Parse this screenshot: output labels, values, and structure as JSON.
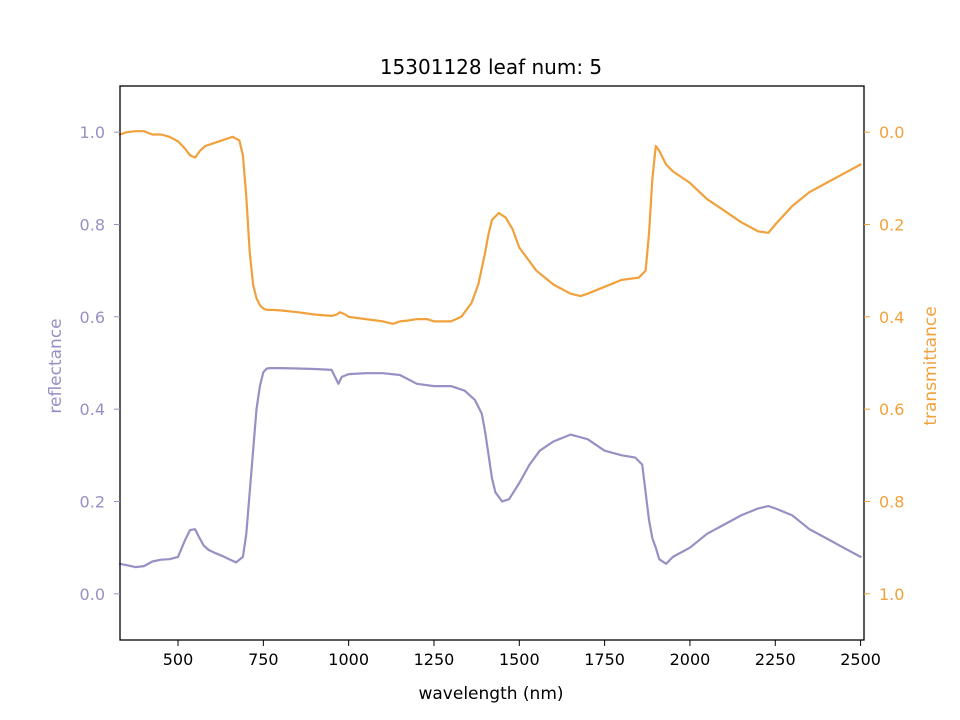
{
  "chart_data": {
    "type": "line",
    "title": "15301128 leaf num: 5",
    "xlabel": "wavelength (nm)",
    "xlim": [
      330,
      2510
    ],
    "x_ticks": [
      500,
      750,
      1000,
      1250,
      1500,
      1750,
      2000,
      2250,
      2500
    ],
    "left_axis": {
      "label": "reflectance",
      "ylim": [
        -0.1,
        1.1
      ],
      "ticks": [
        0.0,
        0.2,
        0.4,
        0.6,
        0.8,
        1.0
      ],
      "inverted": false
    },
    "right_axis": {
      "label": "transmittance",
      "ylim": [
        1.1,
        -0.1
      ],
      "ticks": [
        0.0,
        0.2,
        0.4,
        0.6,
        0.8,
        1.0
      ],
      "inverted": true
    },
    "colors": {
      "reflectance": "#9690c4",
      "transmittance": "#f0a13c"
    },
    "grid": false,
    "series": [
      {
        "axis": "left",
        "x": [
          330,
          350,
          375,
          400,
          425,
          450,
          475,
          500,
          520,
          535,
          550,
          560,
          575,
          590,
          610,
          630,
          650,
          670,
          690,
          700,
          710,
          720,
          730,
          740,
          750,
          760,
          770,
          800,
          850,
          900,
          950,
          970,
          980,
          1000,
          1050,
          1100,
          1150,
          1200,
          1250,
          1300,
          1340,
          1370,
          1390,
          1400,
          1410,
          1420,
          1430,
          1450,
          1470,
          1500,
          1530,
          1560,
          1600,
          1650,
          1700,
          1750,
          1800,
          1840,
          1860,
          1870,
          1880,
          1890,
          1900,
          1910,
          1930,
          1950,
          2000,
          2050,
          2100,
          2150,
          2200,
          2230,
          2250,
          2300,
          2350,
          2400,
          2450,
          2500
        ],
        "y": [
          0.065,
          0.062,
          0.058,
          0.06,
          0.07,
          0.074,
          0.075,
          0.08,
          0.115,
          0.138,
          0.14,
          0.125,
          0.105,
          0.095,
          0.088,
          0.082,
          0.075,
          0.068,
          0.08,
          0.13,
          0.22,
          0.31,
          0.4,
          0.45,
          0.48,
          0.488,
          0.489,
          0.489,
          0.488,
          0.487,
          0.485,
          0.455,
          0.47,
          0.476,
          0.478,
          0.478,
          0.474,
          0.455,
          0.45,
          0.45,
          0.44,
          0.42,
          0.39,
          0.35,
          0.3,
          0.25,
          0.22,
          0.2,
          0.205,
          0.24,
          0.28,
          0.31,
          0.33,
          0.345,
          0.335,
          0.31,
          0.3,
          0.295,
          0.28,
          0.22,
          0.16,
          0.12,
          0.1,
          0.075,
          0.065,
          0.08,
          0.1,
          0.13,
          0.15,
          0.17,
          0.185,
          0.19,
          0.185,
          0.17,
          0.14,
          0.12,
          0.1,
          0.08
        ]
      },
      {
        "axis": "right",
        "x": [
          330,
          350,
          375,
          400,
          425,
          450,
          475,
          500,
          520,
          535,
          550,
          565,
          580,
          600,
          620,
          640,
          660,
          680,
          690,
          700,
          710,
          720,
          730,
          740,
          750,
          760,
          775,
          800,
          850,
          900,
          950,
          965,
          975,
          990,
          1000,
          1050,
          1100,
          1130,
          1150,
          1175,
          1200,
          1230,
          1250,
          1300,
          1330,
          1360,
          1380,
          1400,
          1410,
          1420,
          1440,
          1460,
          1480,
          1500,
          1550,
          1600,
          1650,
          1680,
          1700,
          1750,
          1800,
          1850,
          1870,
          1880,
          1890,
          1900,
          1910,
          1930,
          1950,
          2000,
          2050,
          2100,
          2150,
          2200,
          2230,
          2250,
          2300,
          2350,
          2400,
          2450,
          2500
        ],
        "y": [
          0.005,
          0.0,
          -0.002,
          -0.002,
          0.005,
          0.005,
          0.01,
          0.02,
          0.035,
          0.05,
          0.055,
          0.04,
          0.03,
          0.025,
          0.02,
          0.015,
          0.01,
          0.018,
          0.05,
          0.14,
          0.26,
          0.33,
          0.36,
          0.375,
          0.382,
          0.385,
          0.385,
          0.386,
          0.39,
          0.395,
          0.398,
          0.395,
          0.39,
          0.395,
          0.4,
          0.405,
          0.41,
          0.415,
          0.41,
          0.408,
          0.405,
          0.405,
          0.41,
          0.41,
          0.4,
          0.37,
          0.33,
          0.26,
          0.22,
          0.19,
          0.175,
          0.185,
          0.21,
          0.25,
          0.3,
          0.33,
          0.35,
          0.355,
          0.35,
          0.335,
          0.32,
          0.315,
          0.3,
          0.22,
          0.1,
          0.03,
          0.04,
          0.07,
          0.085,
          0.11,
          0.145,
          0.17,
          0.195,
          0.215,
          0.218,
          0.2,
          0.16,
          0.13,
          0.11,
          0.09,
          0.07
        ]
      }
    ]
  }
}
